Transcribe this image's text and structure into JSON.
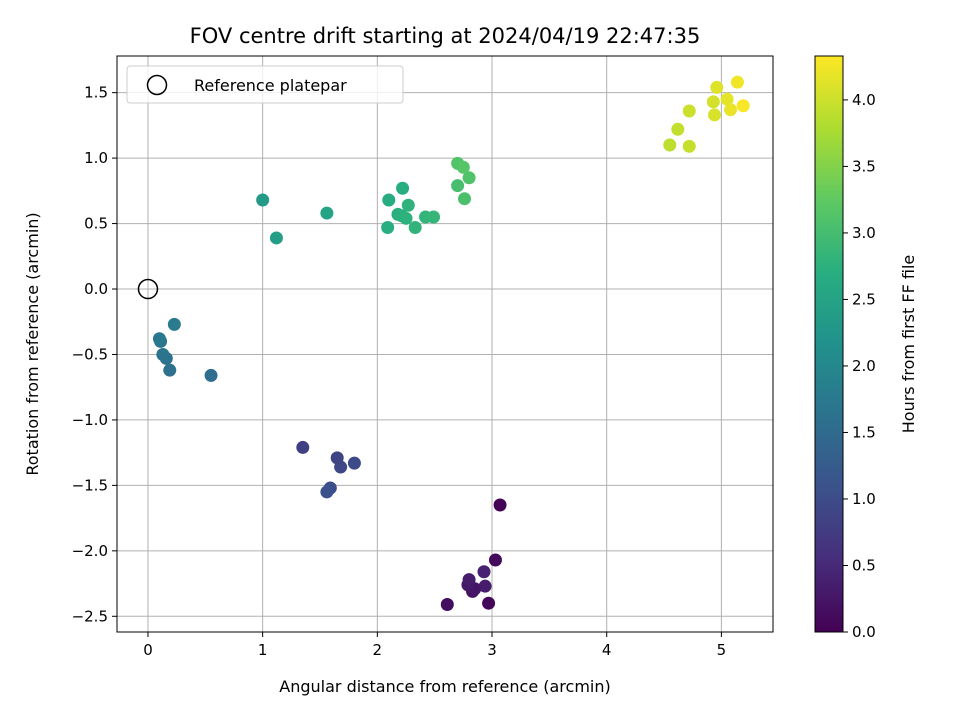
{
  "chart_data": {
    "type": "scatter",
    "title": "FOV centre drift starting at 2024/04/19 22:47:35",
    "xlabel": "Angular distance from reference (arcmin)",
    "ylabel": "Rotation from reference (arcmin)",
    "xlim": [
      -0.27,
      5.45
    ],
    "ylim": [
      -2.62,
      1.78
    ],
    "xticks": [
      0,
      1,
      2,
      3,
      4,
      5
    ],
    "xtick_labels": [
      "0",
      "1",
      "2",
      "3",
      "4",
      "5"
    ],
    "yticks": [
      -2.5,
      -2.0,
      -1.5,
      -1.0,
      -0.5,
      0.0,
      0.5,
      1.0,
      1.5
    ],
    "ytick_labels": [
      "−2.5",
      "−2.0",
      "−1.5",
      "−1.0",
      "−0.5",
      "0.0",
      "0.5",
      "1.0",
      "1.5"
    ],
    "grid": true,
    "legend": {
      "position": "top-left",
      "entries": [
        "Reference platepar"
      ]
    },
    "reference_point": {
      "x": 0,
      "y": 0
    },
    "colorbar": {
      "label": "Hours from first FF file",
      "colormap": "viridis",
      "range": [
        0,
        4.33
      ],
      "ticks": [
        0.0,
        0.5,
        1.0,
        1.5,
        2.0,
        2.5,
        3.0,
        3.5,
        4.0
      ],
      "tick_labels": [
        "0.0",
        "0.5",
        "1.0",
        "1.5",
        "2.0",
        "2.5",
        "3.0",
        "3.5",
        "4.0"
      ]
    },
    "points": [
      {
        "x": 3.07,
        "y": -1.65,
        "t": 0.02
      },
      {
        "x": 3.03,
        "y": -2.07,
        "t": 0.1
      },
      {
        "x": 2.97,
        "y": -2.4,
        "t": 0.08
      },
      {
        "x": 2.61,
        "y": -2.41,
        "t": 0.15
      },
      {
        "x": 2.83,
        "y": -2.31,
        "t": 0.2
      },
      {
        "x": 2.85,
        "y": -2.29,
        "t": 0.25
      },
      {
        "x": 2.79,
        "y": -2.26,
        "t": 0.28
      },
      {
        "x": 2.8,
        "y": -2.22,
        "t": 0.33
      },
      {
        "x": 2.94,
        "y": -2.27,
        "t": 0.35
      },
      {
        "x": 2.93,
        "y": -2.16,
        "t": 0.4
      },
      {
        "x": 1.35,
        "y": -1.21,
        "t": 0.8
      },
      {
        "x": 1.65,
        "y": -1.29,
        "t": 0.88
      },
      {
        "x": 1.68,
        "y": -1.36,
        "t": 0.93
      },
      {
        "x": 1.8,
        "y": -1.33,
        "t": 0.97
      },
      {
        "x": 1.59,
        "y": -1.52,
        "t": 1.02
      },
      {
        "x": 1.56,
        "y": -1.55,
        "t": 1.07
      },
      {
        "x": 0.55,
        "y": -0.66,
        "t": 1.55
      },
      {
        "x": 0.19,
        "y": -0.62,
        "t": 1.6
      },
      {
        "x": 0.16,
        "y": -0.53,
        "t": 1.63
      },
      {
        "x": 0.13,
        "y": -0.5,
        "t": 1.66
      },
      {
        "x": 0.11,
        "y": -0.4,
        "t": 1.7
      },
      {
        "x": 0.1,
        "y": -0.38,
        "t": 1.73
      },
      {
        "x": 0.23,
        "y": -0.27,
        "t": 1.78
      },
      {
        "x": 1.0,
        "y": 0.68,
        "t": 2.35
      },
      {
        "x": 1.12,
        "y": 0.39,
        "t": 2.4
      },
      {
        "x": 1.56,
        "y": 0.58,
        "t": 2.5
      },
      {
        "x": 2.1,
        "y": 0.68,
        "t": 2.65
      },
      {
        "x": 2.22,
        "y": 0.77,
        "t": 2.68
      },
      {
        "x": 2.09,
        "y": 0.47,
        "t": 2.7
      },
      {
        "x": 2.18,
        "y": 0.57,
        "t": 2.72
      },
      {
        "x": 2.21,
        "y": 0.56,
        "t": 2.74
      },
      {
        "x": 2.25,
        "y": 0.54,
        "t": 2.76
      },
      {
        "x": 2.27,
        "y": 0.64,
        "t": 2.78
      },
      {
        "x": 2.33,
        "y": 0.47,
        "t": 2.8
      },
      {
        "x": 2.42,
        "y": 0.55,
        "t": 2.82
      },
      {
        "x": 2.49,
        "y": 0.55,
        "t": 2.84
      },
      {
        "x": 2.7,
        "y": 0.79,
        "t": 3.02
      },
      {
        "x": 2.76,
        "y": 0.69,
        "t": 3.06
      },
      {
        "x": 2.8,
        "y": 0.85,
        "t": 3.1
      },
      {
        "x": 2.7,
        "y": 0.96,
        "t": 3.13
      },
      {
        "x": 2.75,
        "y": 0.93,
        "t": 3.16
      },
      {
        "x": 4.55,
        "y": 1.1,
        "t": 3.9
      },
      {
        "x": 4.62,
        "y": 1.22,
        "t": 3.93
      },
      {
        "x": 4.72,
        "y": 1.09,
        "t": 3.96
      },
      {
        "x": 4.72,
        "y": 1.36,
        "t": 3.99
      },
      {
        "x": 4.93,
        "y": 1.43,
        "t": 4.05
      },
      {
        "x": 4.94,
        "y": 1.33,
        "t": 4.08
      },
      {
        "x": 4.96,
        "y": 1.54,
        "t": 4.12
      },
      {
        "x": 5.05,
        "y": 1.45,
        "t": 4.16
      },
      {
        "x": 5.08,
        "y": 1.37,
        "t": 4.2
      },
      {
        "x": 5.14,
        "y": 1.58,
        "t": 4.25
      },
      {
        "x": 5.19,
        "y": 1.4,
        "t": 4.3
      }
    ]
  }
}
